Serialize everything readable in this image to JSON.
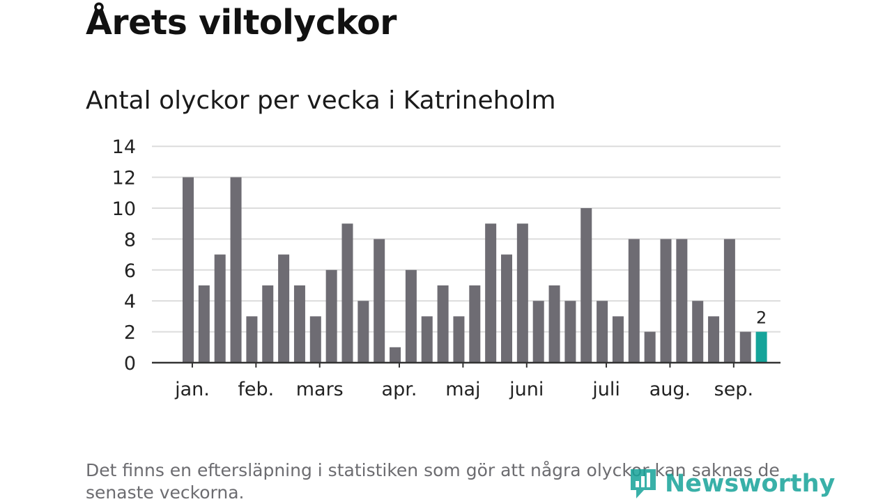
{
  "page": {
    "title": "Årets viltolyckor",
    "subtitle": "Antal olyckor per vecka i Katrineholm",
    "footnote": "Det finns en eftersläpning i statistiken som gör att några olyckor kan saknas de senaste veckorna.",
    "brand": "Newsworthy"
  },
  "chart_data": {
    "type": "bar",
    "title": "Antal olyckor per vecka i Katrineholm",
    "xlabel": "",
    "ylabel": "",
    "ylim": [
      0,
      14
    ],
    "yticks": [
      0,
      2,
      4,
      6,
      8,
      10,
      12,
      14
    ],
    "grid": true,
    "values": [
      12,
      5,
      7,
      12,
      3,
      5,
      7,
      5,
      3,
      6,
      9,
      4,
      8,
      1,
      6,
      3,
      5,
      3,
      5,
      9,
      7,
      9,
      4,
      5,
      4,
      10,
      4,
      3,
      8,
      2,
      8,
      8,
      4,
      3,
      8,
      2
    ],
    "month_ticks": [
      {
        "label": "jan.",
        "bar_index": 0.26
      },
      {
        "label": "feb.",
        "bar_index": 4.26
      },
      {
        "label": "mars",
        "bar_index": 8.26
      },
      {
        "label": "apr.",
        "bar_index": 13.26
      },
      {
        "label": "maj",
        "bar_index": 17.26
      },
      {
        "label": "juni",
        "bar_index": 21.26
      },
      {
        "label": "juli",
        "bar_index": 26.26
      },
      {
        "label": "aug.",
        "bar_index": 30.26
      },
      {
        "label": "sep.",
        "bar_index": 34.26
      }
    ],
    "highlight_index": 36,
    "highlight_value": 2,
    "highlight_label": "2",
    "colors": {
      "bar": "#6e6c73",
      "highlight": "#15a49a",
      "grid": "#dcdcdc",
      "axis": "#333333",
      "text": "#222222"
    }
  }
}
